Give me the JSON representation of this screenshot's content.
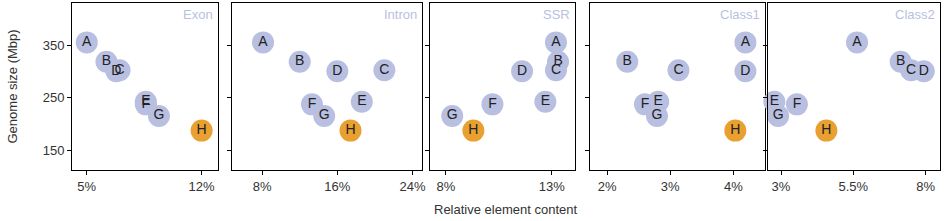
{
  "chart_data": [
    {
      "type": "scatter",
      "title": "Exon",
      "ylabel": "Genome size (Mbp)",
      "labels": [
        "A",
        "B",
        "C",
        "D",
        "E",
        "F",
        "G",
        "H"
      ],
      "x": [
        5.0,
        6.2,
        7.0,
        6.8,
        8.6,
        8.6,
        9.4,
        12.0
      ],
      "values": [
        355,
        318,
        302,
        300,
        242,
        237,
        215,
        187
      ],
      "colors": [
        "#b9bfe0",
        "#b9bfe0",
        "#b9bfe0",
        "#b9bfe0",
        "#b9bfe0",
        "#b9bfe0",
        "#b9bfe0",
        "#e8a030"
      ],
      "xlim": [
        4.1,
        13
      ],
      "xticks": [
        {
          "value": 5,
          "label": "5%"
        },
        {
          "value": 12,
          "label": "12%"
        }
      ],
      "ylim": [
        112,
        430
      ],
      "yticks": [
        150,
        250,
        350
      ]
    },
    {
      "type": "scatter",
      "title": "Intron",
      "tick_labels": "x",
      "labels": [
        "A",
        "B",
        "C",
        "D",
        "E",
        "F",
        "G",
        "H"
      ],
      "x": [
        8.1,
        12.0,
        21.0,
        16.0,
        18.6,
        13.3,
        14.6,
        17.4
      ],
      "values": [
        355,
        318,
        302,
        300,
        242,
        237,
        215,
        187
      ],
      "colors": [
        "#b9bfe0",
        "#b9bfe0",
        "#b9bfe0",
        "#b9bfe0",
        "#b9bfe0",
        "#b9bfe0",
        "#b9bfe0",
        "#e8a030"
      ],
      "xlim": [
        4.8,
        25
      ],
      "xticks": [
        {
          "value": 8,
          "label": "8%"
        },
        {
          "value": 16,
          "label": "16%"
        },
        {
          "value": 24,
          "label": "24%"
        }
      ],
      "ylim": [
        112,
        430
      ],
      "yticks": [
        150,
        250,
        350
      ]
    },
    {
      "type": "scatter",
      "title": "SSR",
      "tick_labels": "x",
      "xlabel": "Relative element content",
      "labels": [
        "A",
        "B",
        "C",
        "D",
        "E",
        "F",
        "G",
        "H"
      ],
      "x": [
        13.2,
        13.3,
        13.2,
        11.6,
        12.7,
        10.2,
        8.3,
        9.3
      ],
      "values": [
        355,
        318,
        302,
        300,
        242,
        237,
        215,
        187
      ],
      "colors": [
        "#b9bfe0",
        "#b9bfe0",
        "#b9bfe0",
        "#b9bfe0",
        "#b9bfe0",
        "#b9bfe0",
        "#b9bfe0",
        "#e8a030"
      ],
      "xlim": [
        7.25,
        14.1
      ],
      "xticks": [
        {
          "value": 8,
          "label": "8%"
        },
        {
          "value": 13,
          "label": "13%"
        }
      ],
      "ylim": [
        112,
        430
      ],
      "yticks": [
        150,
        250,
        350
      ]
    },
    {
      "type": "scatter",
      "title": "Class1",
      "tick_labels": "x",
      "labels": [
        "A",
        "B",
        "C",
        "D",
        "E",
        "F",
        "G",
        "H"
      ],
      "x": [
        4.19,
        2.32,
        3.13,
        4.19,
        2.81,
        2.6,
        2.79,
        4.03
      ],
      "values": [
        355,
        318,
        302,
        300,
        242,
        237,
        215,
        187
      ],
      "colors": [
        "#b9bfe0",
        "#b9bfe0",
        "#b9bfe0",
        "#b9bfe0",
        "#b9bfe0",
        "#b9bfe0",
        "#b9bfe0",
        "#e8a030"
      ],
      "xlim": [
        1.73,
        4.5
      ],
      "xticks": [
        {
          "value": 2,
          "label": "2%"
        },
        {
          "value": 3,
          "label": "3%"
        },
        {
          "value": 4,
          "label": "4%"
        }
      ],
      "ylim": [
        112,
        430
      ],
      "yticks": [
        150,
        250,
        350
      ]
    },
    {
      "type": "scatter",
      "title": "Class2",
      "tick_labels": "x",
      "labels": [
        "A",
        "B",
        "C",
        "D",
        "E",
        "F",
        "G",
        "H"
      ],
      "x": [
        5.63,
        7.14,
        7.5,
        7.94,
        2.77,
        3.55,
        2.9,
        4.57
      ],
      "values": [
        355,
        318,
        302,
        300,
        242,
        237,
        215,
        187
      ],
      "colors": [
        "#b9bfe0",
        "#b9bfe0",
        "#b9bfe0",
        "#b9bfe0",
        "#b9bfe0",
        "#b9bfe0",
        "#b9bfe0",
        "#e8a030"
      ],
      "xlim": [
        2.55,
        8.5
      ],
      "xticks": [
        {
          "value": 3,
          "label": "3%"
        },
        {
          "value": 5.5,
          "label": "5.5%"
        },
        {
          "value": 8,
          "label": "8%"
        }
      ],
      "ylim": [
        112,
        430
      ],
      "yticks": [
        150,
        250,
        350
      ]
    }
  ]
}
